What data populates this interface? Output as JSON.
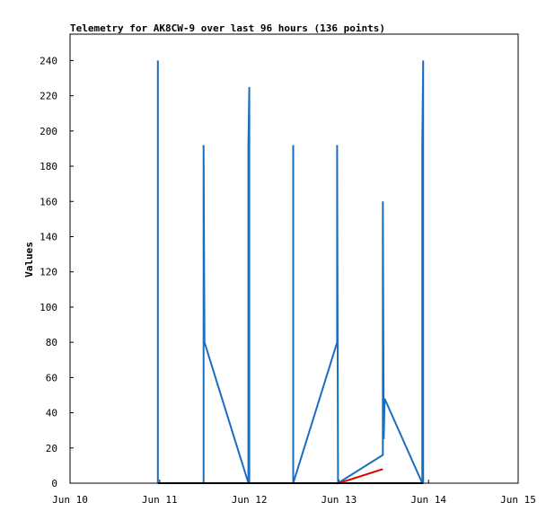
{
  "chart_data": {
    "type": "line",
    "title": "Telemetry for AK8CW-9 over last 96 hours (136 points)",
    "y_label": "Values",
    "xlim": [
      10,
      15
    ],
    "xticks": [
      {
        "value": 10,
        "label": "Jun 10"
      },
      {
        "value": 11,
        "label": "Jun 11"
      },
      {
        "value": 12,
        "label": "Jun 12"
      },
      {
        "value": 13,
        "label": "Jun 13"
      },
      {
        "value": 14,
        "label": "Jun 14"
      },
      {
        "value": 15,
        "label": "Jun 15"
      }
    ],
    "ylim": [
      0,
      255
    ],
    "yticks": [
      0,
      20,
      40,
      60,
      80,
      100,
      120,
      140,
      160,
      180,
      200,
      220,
      240
    ],
    "series": [
      {
        "color": "#1a6ec0",
        "x": [
          10.98,
          10.98,
          10.98,
          11.49,
          11.49,
          11.5,
          11.99,
          11.99,
          12.0,
          12.0,
          12.49,
          12.49,
          12.49,
          12.98,
          12.98,
          12.99,
          13.49,
          13.49,
          13.5,
          13.51,
          13.93,
          13.93,
          13.94,
          13.94
        ],
        "values": [
          0,
          240,
          0,
          0,
          192,
          80,
          0,
          192,
          225,
          0,
          0,
          192,
          0,
          80,
          192,
          0,
          16,
          160,
          25,
          48,
          0,
          192,
          240,
          0
        ]
      },
      {
        "color": "#e00000",
        "x": [
          13.0,
          13.49
        ],
        "values": [
          0,
          8
        ]
      },
      {
        "color": "#000000",
        "x": [
          10.98,
          13.94
        ],
        "values": [
          0,
          0
        ]
      }
    ]
  }
}
